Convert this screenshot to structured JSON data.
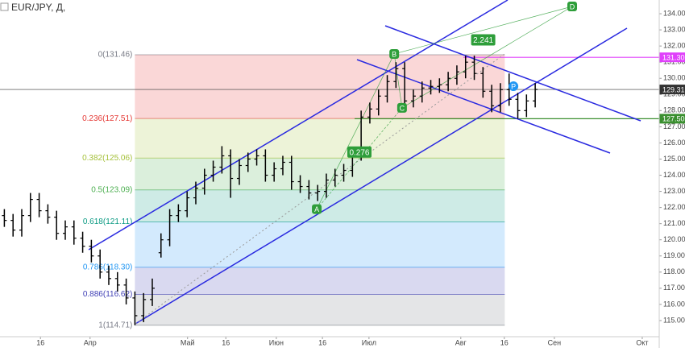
{
  "chart_data": {
    "type": "ohlc",
    "title": "EUR/JPY, Д,",
    "color": "#000000",
    "x": [
      1,
      3,
      5,
      7,
      9,
      11,
      13,
      15,
      17,
      19,
      21,
      23,
      25,
      27,
      29,
      31,
      33,
      35,
      37,
      39,
      41,
      43,
      45,
      47,
      49,
      51,
      53,
      55,
      57,
      59,
      61,
      63,
      65,
      67,
      69,
      71,
      73,
      75,
      77,
      79,
      81,
      83,
      85,
      87,
      89,
      91,
      93,
      95,
      97,
      99,
      101,
      103,
      105,
      107,
      109,
      111,
      113,
      115,
      117,
      119,
      121,
      123
    ],
    "open": [
      121.5,
      121.2,
      120.6,
      121.5,
      122.5,
      121.8,
      121.4,
      120.4,
      120.8,
      120.1,
      119.6,
      119.0,
      118.0,
      117.6,
      117.2,
      116.4,
      115.3,
      116.3,
      119.2,
      120.0,
      121.5,
      121.8,
      122.6,
      123.2,
      124.0,
      124.5,
      125.2,
      123.8,
      124.6,
      125.0,
      125.2,
      124.0,
      124.4,
      124.8,
      123.6,
      123.3,
      122.9,
      123.0,
      123.7,
      124.0,
      124.3,
      125.3,
      127.6,
      128.1,
      128.9,
      129.8,
      130.6,
      128.6,
      128.9,
      129.4,
      129.5,
      129.6,
      130.0,
      130.4,
      131.0,
      130.3,
      129.2,
      128.3,
      129.3,
      128.7,
      128.0,
      128.6
    ],
    "high": [
      121.9,
      121.6,
      121.9,
      122.9,
      122.9,
      122.2,
      121.8,
      121.2,
      121.2,
      120.5,
      120.0,
      119.4,
      118.4,
      118.0,
      117.6,
      116.8,
      116.7,
      117.6,
      120.4,
      121.9,
      122.2,
      123.0,
      123.6,
      124.4,
      124.9,
      125.8,
      125.6,
      125.0,
      125.4,
      125.6,
      125.6,
      124.8,
      125.2,
      125.2,
      124.0,
      123.7,
      123.4,
      124.1,
      124.4,
      124.7,
      125.7,
      128.0,
      128.5,
      129.3,
      130.2,
      131.0,
      131.0,
      129.3,
      129.8,
      129.9,
      130.0,
      130.4,
      130.8,
      131.4,
      131.4,
      130.7,
      129.6,
      129.7,
      130.3,
      129.1,
      129.0,
      129.7
    ],
    "low": [
      120.8,
      120.2,
      120.2,
      121.1,
      121.4,
      121.0,
      120.0,
      120.0,
      119.7,
      119.2,
      118.6,
      117.6,
      117.2,
      116.8,
      116.0,
      114.71,
      114.9,
      115.9,
      118.9,
      119.6,
      121.1,
      121.4,
      122.2,
      122.8,
      123.6,
      124.1,
      122.6,
      123.4,
      124.2,
      124.6,
      123.6,
      123.6,
      124.0,
      123.1,
      122.9,
      122.5,
      122.4,
      122.6,
      123.3,
      123.6,
      123.9,
      124.9,
      127.2,
      127.7,
      128.5,
      129.4,
      128.2,
      128.2,
      128.5,
      129.0,
      129.1,
      129.2,
      129.6,
      130.0,
      129.9,
      128.8,
      127.9,
      127.9,
      128.3,
      127.5,
      127.6,
      128.2
    ],
    "close": [
      121.2,
      120.6,
      121.5,
      122.5,
      121.8,
      121.4,
      120.4,
      120.8,
      120.1,
      119.6,
      119.0,
      118.0,
      117.6,
      117.2,
      116.4,
      115.3,
      116.3,
      117.0,
      120.0,
      121.5,
      121.8,
      122.6,
      123.2,
      124.0,
      124.5,
      125.2,
      123.8,
      124.6,
      125.0,
      125.2,
      124.0,
      124.4,
      124.8,
      123.6,
      123.3,
      122.9,
      123.0,
      123.7,
      124.0,
      124.3,
      125.3,
      127.6,
      128.1,
      128.9,
      129.8,
      130.6,
      128.6,
      128.9,
      129.4,
      129.5,
      129.6,
      130.0,
      130.4,
      131.0,
      130.3,
      129.2,
      128.3,
      129.3,
      128.7,
      128.0,
      128.6,
      129.31
    ],
    "xlim": [
      0,
      151.5
    ],
    "ylim": [
      114.0,
      134.85
    ],
    "xticks": [
      {
        "value": 9.3,
        "label": "16"
      },
      {
        "value": 20.7,
        "label": "Апр"
      },
      {
        "value": 43.1,
        "label": "Май"
      },
      {
        "value": 51.9,
        "label": "16"
      },
      {
        "value": 63.5,
        "label": "Июн"
      },
      {
        "value": 74.1,
        "label": "16"
      },
      {
        "value": 84.8,
        "label": "Июл"
      },
      {
        "value": 105.9,
        "label": "Авг"
      },
      {
        "value": 115.9,
        "label": "16"
      },
      {
        "value": 127.4,
        "label": "Сен"
      },
      {
        "value": 147.6,
        "label": "Окт"
      }
    ],
    "yticks": [
      {
        "value": 115,
        "label": "115.00"
      },
      {
        "value": 116,
        "label": "116.00"
      },
      {
        "value": 117,
        "label": "117.00"
      },
      {
        "value": 118,
        "label": "118.00"
      },
      {
        "value": 119,
        "label": "119.00"
      },
      {
        "value": 120,
        "label": "120.00"
      },
      {
        "value": 121,
        "label": "121.00"
      },
      {
        "value": 122,
        "label": "122.00"
      },
      {
        "value": 123,
        "label": "123.00"
      },
      {
        "value": 124,
        "label": "124.00"
      },
      {
        "value": 125,
        "label": "125.00"
      },
      {
        "value": 126,
        "label": "126.00"
      },
      {
        "value": 127,
        "label": "127.00"
      },
      {
        "value": 128,
        "label": "128.00"
      },
      {
        "value": 129,
        "label": "129.00"
      },
      {
        "value": 130,
        "label": "130.00"
      },
      {
        "value": 131,
        "label": "131.00"
      },
      {
        "value": 132,
        "label": "132.00"
      },
      {
        "value": 133,
        "label": "133.00"
      },
      {
        "value": 134,
        "label": "134.00"
      }
    ],
    "fib": {
      "x": [
        31,
        116
      ],
      "levels": [
        {
          "value": 131.46,
          "label": "0(131.46)",
          "color": "#787b86"
        },
        {
          "value": 127.51,
          "label": "0.236(127.51)",
          "color": "#e53935"
        },
        {
          "value": 125.06,
          "label": "0.382(125.06)",
          "color": "#a5c13a"
        },
        {
          "value": 123.09,
          "label": "0.5(123.09)",
          "color": "#4caf50"
        },
        {
          "value": 121.11,
          "label": "0.618(121.11)",
          "color": "#089981"
        },
        {
          "value": 118.3,
          "label": "0.786(118.30)",
          "color": "#2196f3"
        },
        {
          "value": 116.62,
          "label": "0.886(116.62)",
          "color": "#3f3fb5"
        },
        {
          "value": 114.71,
          "label": "1(114.71)",
          "color": "#787b86"
        }
      ]
    },
    "price_lines": [
      {
        "value": 131.3,
        "label": "131.30",
        "color": "#e040fb",
        "x_start": 106.5
      },
      {
        "value": 129.31,
        "label": "129.31",
        "color": "#333333",
        "x_start": 0
      },
      {
        "value": 127.5,
        "label": "127.50",
        "color": "#3a8f2f",
        "x_start": 81.5
      }
    ],
    "pattern": {
      "color": "#2e9e3a",
      "points": [
        {
          "label": "A",
          "x": 72.8,
          "y": 121.9
        },
        {
          "label": "B",
          "x": 90.6,
          "y": 131.51
        },
        {
          "label": "C",
          "x": 92.4,
          "y": 128.17
        },
        {
          "label": "D",
          "x": 131.5,
          "y": 134.45
        },
        {
          "label": "P",
          "x": 118,
          "y": 129.51
        }
      ],
      "ratios": [
        "0.276",
        "2.241"
      ]
    }
  }
}
